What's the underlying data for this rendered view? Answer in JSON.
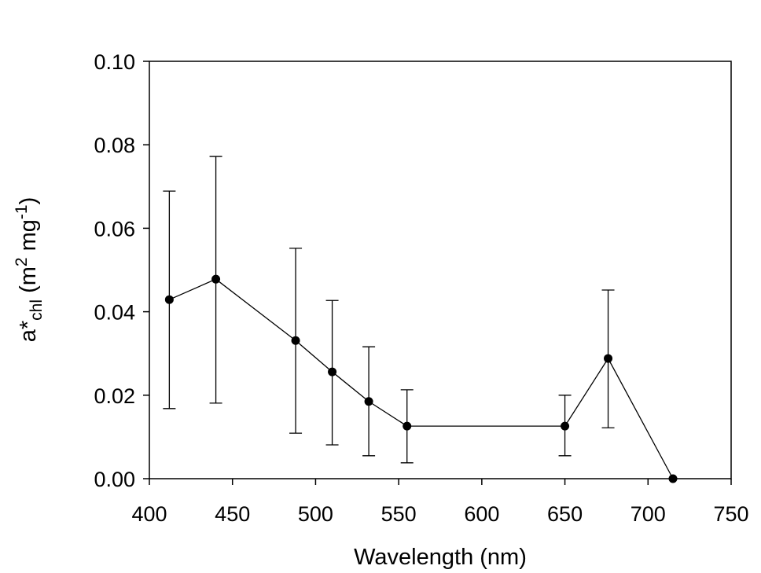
{
  "chart_data": {
    "type": "line",
    "title": "",
    "xlabel": "Wavelength (nm)",
    "ylabel": {
      "base": "a*",
      "sub": "chl",
      "unit_open": " (m",
      "sup1": "2",
      "unit_mid": " mg",
      "sup2": "-1",
      "unit_close": ")"
    },
    "xlim": [
      400,
      750
    ],
    "ylim": [
      0,
      0.1
    ],
    "xticks": [
      "400",
      "450",
      "500",
      "550",
      "600",
      "650",
      "700",
      "750"
    ],
    "yticks": [
      "0.00",
      "0.02",
      "0.04",
      "0.06",
      "0.08",
      "0.10"
    ],
    "grid": false,
    "legend": "none",
    "series": [
      {
        "x": [
          412,
          440,
          488,
          510,
          532,
          555,
          650,
          676,
          715
        ],
        "y": [
          0.0429,
          0.0478,
          0.0331,
          0.0256,
          0.0185,
          0.0126,
          0.0126,
          0.0288,
          0.0
        ],
        "err_upper": [
          0.0689,
          0.0772,
          0.0552,
          0.0427,
          0.0316,
          0.0213,
          0.02,
          0.0452,
          null
        ],
        "err_lower": [
          0.0168,
          0.0181,
          0.0109,
          0.0081,
          0.0055,
          0.0038,
          0.0055,
          0.0122,
          null
        ],
        "color": "#000000",
        "marker": "filled-circle"
      }
    ]
  }
}
